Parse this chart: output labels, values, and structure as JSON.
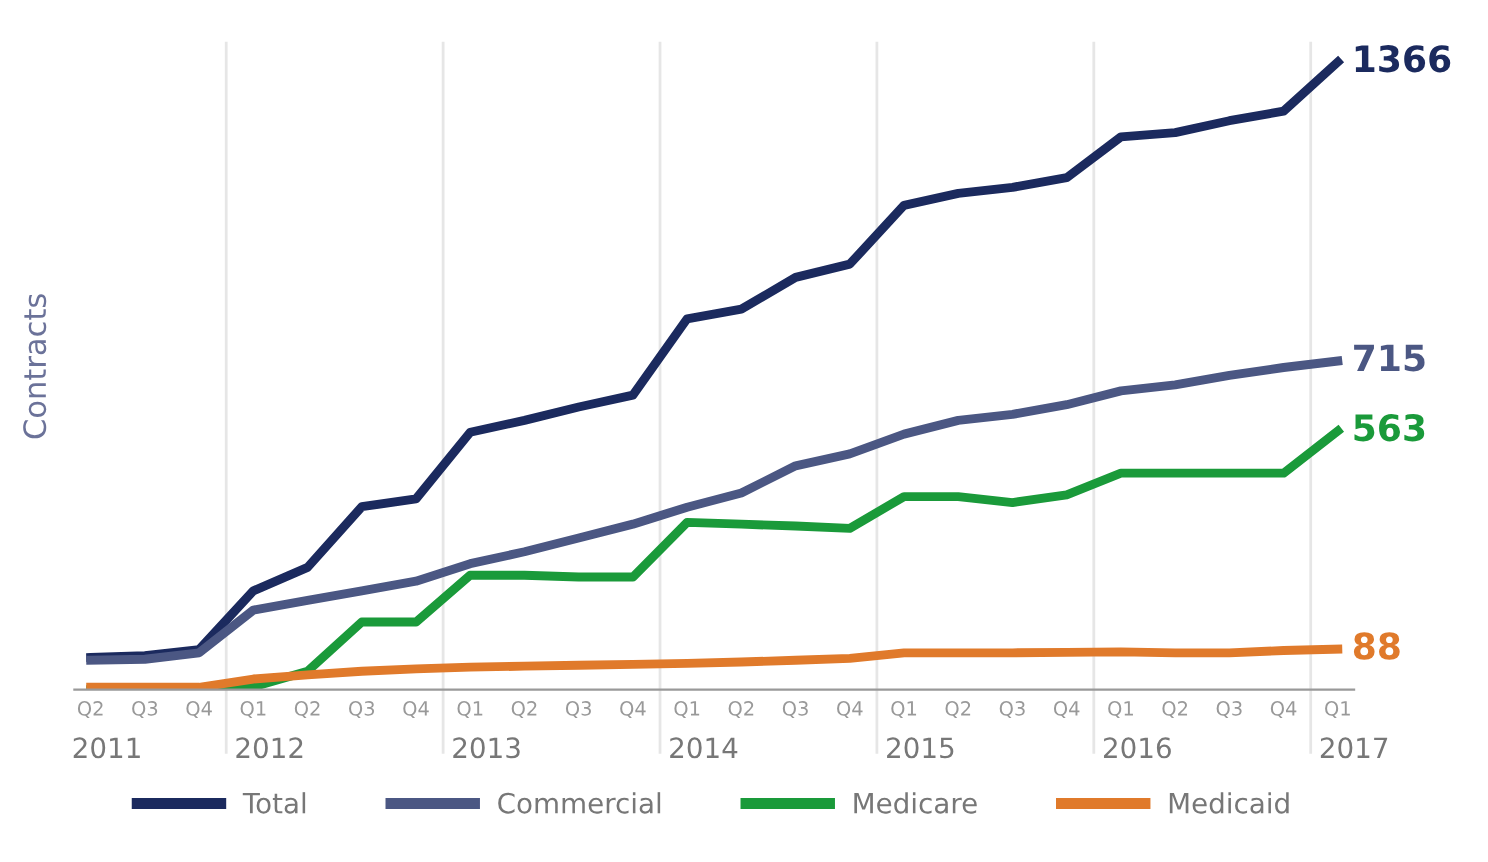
{
  "chart_data": {
    "type": "line",
    "ylabel": "Contracts",
    "categories": [
      "Q2\n2011",
      "Q3",
      "Q4",
      "Q1\n2012",
      "Q2",
      "Q3",
      "Q4",
      "Q1\n2013",
      "Q2",
      "Q3",
      "Q4",
      "Q1\n2014",
      "Q2",
      "Q3",
      "Q4",
      "Q1\n2015",
      "Q2",
      "Q3",
      "Q4",
      "Q1\n2016",
      "Q2",
      "Q3",
      "Q4",
      "Q1\n2017"
    ],
    "series": [
      {
        "name": "Total",
        "color": "#1b2a5e",
        "values": [
          70,
          74,
          87,
          215,
          266,
          398,
          415,
          560,
          586,
          615,
          641,
          807,
          828,
          897,
          926,
          1054,
          1080,
          1093,
          1114,
          1203,
          1212,
          1238,
          1259,
          1366
        ],
        "value_labels": [
          null,
          null,
          null,
          null,
          null,
          null,
          null,
          null,
          null,
          null,
          null,
          null,
          null,
          null,
          null,
          null,
          null,
          null,
          null,
          null,
          null,
          null,
          null,
          "1366"
        ]
      },
      {
        "name": "Commercial",
        "color": "#4b5783",
        "values": [
          64,
          66,
          80,
          173,
          194,
          215,
          236,
          274,
          300,
          330,
          360,
          397,
          428,
          487,
          513,
          556,
          586,
          599,
          620,
          650,
          663,
          684,
          701,
          715
        ],
        "value_labels": [
          null,
          null,
          null,
          null,
          null,
          null,
          null,
          null,
          null,
          null,
          null,
          null,
          null,
          null,
          null,
          null,
          null,
          null,
          null,
          null,
          null,
          null,
          null,
          "715"
        ]
      },
      {
        "name": "Medicare",
        "color": "#1a9a3a",
        "values": [
          0,
          0,
          0,
          6,
          40,
          147,
          147,
          249,
          249,
          245,
          245,
          364,
          360,
          356,
          351,
          420,
          420,
          407,
          424,
          471,
          471,
          471,
          471,
          563
        ],
        "value_labels": [
          null,
          null,
          null,
          null,
          null,
          null,
          null,
          null,
          null,
          null,
          null,
          null,
          null,
          null,
          null,
          null,
          null,
          null,
          null,
          null,
          null,
          null,
          null,
          "563"
        ]
      },
      {
        "name": "Medicaid",
        "color": "#e07a2b",
        "values": [
          5,
          5,
          5,
          23,
          32,
          40,
          45,
          49,
          51,
          53,
          55,
          57,
          60,
          64,
          68,
          80,
          80,
          80,
          81,
          82,
          80,
          80,
          85,
          88
        ],
        "value_labels": [
          null,
          null,
          null,
          null,
          null,
          null,
          null,
          null,
          null,
          null,
          null,
          null,
          null,
          null,
          null,
          null,
          null,
          null,
          null,
          null,
          null,
          null,
          null,
          "88"
        ]
      }
    ],
    "legend": "bottom",
    "marker": "none",
    "line_style": "solid"
  }
}
